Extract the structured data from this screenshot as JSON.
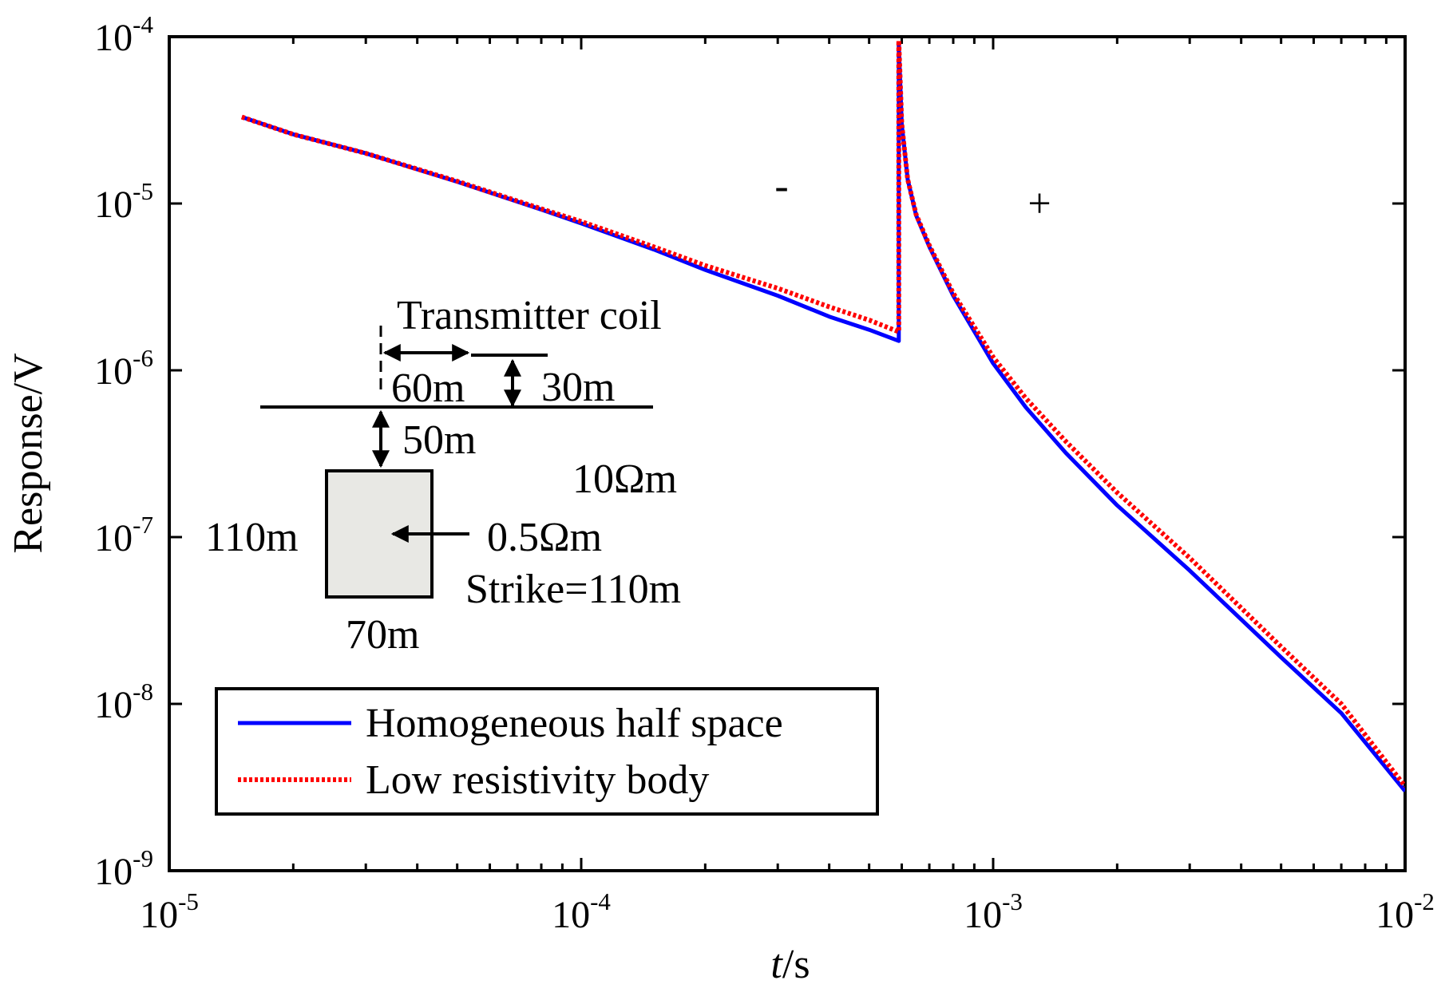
{
  "chart_data": {
    "type": "line",
    "title": "",
    "x_scale": "log",
    "y_scale": "log",
    "xlabel": {
      "italic": "t",
      "rest": "/s"
    },
    "ylabel": "Response/V",
    "xlim": [
      1e-05,
      0.01
    ],
    "ylim": [
      1e-09,
      0.0001
    ],
    "x_ticks": [
      {
        "value": 1e-05,
        "base": "10",
        "exp": "-5"
      },
      {
        "value": 0.0001,
        "base": "10",
        "exp": "-4"
      },
      {
        "value": 0.001,
        "base": "10",
        "exp": "-3"
      },
      {
        "value": 0.01,
        "base": "10",
        "exp": "-2"
      }
    ],
    "y_ticks": [
      {
        "value": 1e-09,
        "base": "10",
        "exp": "-9"
      },
      {
        "value": 1e-08,
        "base": "10",
        "exp": "-8"
      },
      {
        "value": 1e-07,
        "base": "10",
        "exp": "-7"
      },
      {
        "value": 1e-06,
        "base": "10",
        "exp": "-6"
      },
      {
        "value": 1e-05,
        "base": "10",
        "exp": "-5"
      },
      {
        "value": 0.0001,
        "base": "10",
        "exp": "-4"
      }
    ],
    "series": [
      {
        "name": "Homogeneous half space",
        "color": "#0000ff",
        "style": "solid",
        "x": [
          1.5e-05,
          2e-05,
          3e-05,
          5e-05,
          8e-05,
          0.0001,
          0.00015,
          0.0002,
          0.0003,
          0.0004,
          0.0005,
          0.00059,
          0.00059,
          0.0006,
          0.00062,
          0.00065,
          0.0007,
          0.0008,
          0.001,
          0.0012,
          0.0015,
          0.002,
          0.003,
          0.005,
          0.007,
          0.01
        ],
        "y": [
          3.3e-05,
          2.6e-05,
          2e-05,
          1.35e-05,
          9.2e-06,
          7.6e-06,
          5.3e-06,
          4e-06,
          2.8e-06,
          2.1e-06,
          1.75e-06,
          1.5e-06,
          9e-05,
          3e-05,
          1.4e-05,
          8.5e-06,
          5.5e-06,
          2.8e-06,
          1.1e-06,
          6e-07,
          3.2e-07,
          1.55e-07,
          6.3e-08,
          1.9e-08,
          8.8e-09,
          3e-09
        ]
      },
      {
        "name": "Low resistivity body",
        "color": "#ff0000",
        "style": "dotted",
        "x": [
          1.5e-05,
          2e-05,
          3e-05,
          5e-05,
          8e-05,
          0.0001,
          0.00015,
          0.0002,
          0.0003,
          0.0004,
          0.0005,
          0.00059,
          0.00059,
          0.0006,
          0.00062,
          0.00065,
          0.0007,
          0.0008,
          0.001,
          0.0012,
          0.0015,
          0.002,
          0.003,
          0.005,
          0.007,
          0.01
        ],
        "y": [
          3.3e-05,
          2.6e-05,
          2e-05,
          1.36e-05,
          9.3e-06,
          7.8e-06,
          5.5e-06,
          4.25e-06,
          3.1e-06,
          2.4e-06,
          2e-06,
          1.7e-06,
          9.5e-05,
          3e-05,
          1.4e-05,
          8.6e-06,
          5.6e-06,
          2.9e-06,
          1.2e-06,
          6.8e-07,
          3.75e-07,
          1.85e-07,
          7.5e-08,
          2.2e-08,
          1e-08,
          3.2e-09
        ]
      }
    ],
    "legend": {
      "position": "bottom-left",
      "entries": [
        "Homogeneous half space",
        "Low resistivity body"
      ]
    },
    "annotations": {
      "minus_sign": "-",
      "plus_sign": "+",
      "inset": {
        "transmitter_label": "Transmitter coil",
        "horizontal_offset": "60m",
        "coil_height": "30m",
        "depth_to_body": "50m",
        "host_resistivity": "10Ωm",
        "body_height": "110m",
        "body_resistivity": "0.5Ωm",
        "strike_length": "Strike=110m",
        "body_width": "70m",
        "body_fill": "#e8e8e4"
      }
    }
  }
}
